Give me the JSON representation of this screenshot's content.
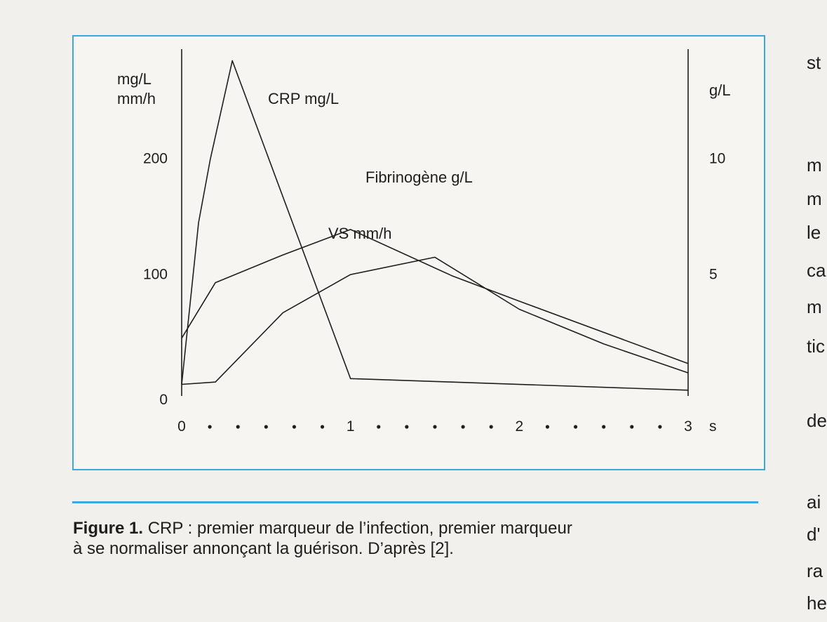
{
  "chart_data": {
    "type": "line",
    "left_axis_units": [
      "mg/L",
      "mm/h"
    ],
    "right_axis_units": [
      "g/L"
    ],
    "left_ticks": [
      "200",
      "100",
      "0"
    ],
    "right_ticks": [
      "10",
      "5"
    ],
    "ylim_left": [
      0,
      300
    ],
    "ylim_right": [
      0,
      15
    ],
    "x_ticks": [
      "0",
      "1",
      "2",
      "3"
    ],
    "x_dots_between": 5,
    "xlim": [
      0,
      3
    ],
    "x_unit": "s",
    "series": [
      {
        "name": "CRP mg/L",
        "axis": "left",
        "points": [
          [
            0,
            10
          ],
          [
            0.1,
            150
          ],
          [
            0.17,
            205
          ],
          [
            0.3,
            290
          ],
          [
            1,
            15
          ],
          [
            1.6,
            12
          ],
          [
            3,
            5
          ]
        ]
      },
      {
        "name": "Fibrinogène g/L",
        "axis": "right",
        "points": [
          [
            0,
            2.5
          ],
          [
            0.2,
            4.9
          ],
          [
            0.6,
            6.1
          ],
          [
            1,
            7.2
          ],
          [
            1.6,
            5.2
          ],
          [
            2,
            4.1
          ],
          [
            3,
            1.4
          ]
        ]
      },
      {
        "name": "VS mm/h",
        "axis": "left",
        "points": [
          [
            0,
            10
          ],
          [
            0.2,
            12
          ],
          [
            0.6,
            72
          ],
          [
            1,
            105
          ],
          [
            1.5,
            120
          ],
          [
            2,
            75
          ],
          [
            2.5,
            45
          ],
          [
            3,
            20
          ]
        ]
      }
    ],
    "series_label_text": [
      "CRP mg/L",
      "Fibrinogène g/L",
      "VS mm/h"
    ]
  },
  "caption": {
    "figure_label": "Figure 1.",
    "text_line1": " CRP : premier marqueur de l’infection, premier marqueur",
    "text_line2": "à se normaliser annonçant la guérison. D’après [2]."
  },
  "side_fragments": [
    "st",
    "m",
    "m",
    "le",
    "ca",
    "m",
    "tic",
    "de",
    "ai",
    "d'",
    "ra",
    "he"
  ]
}
